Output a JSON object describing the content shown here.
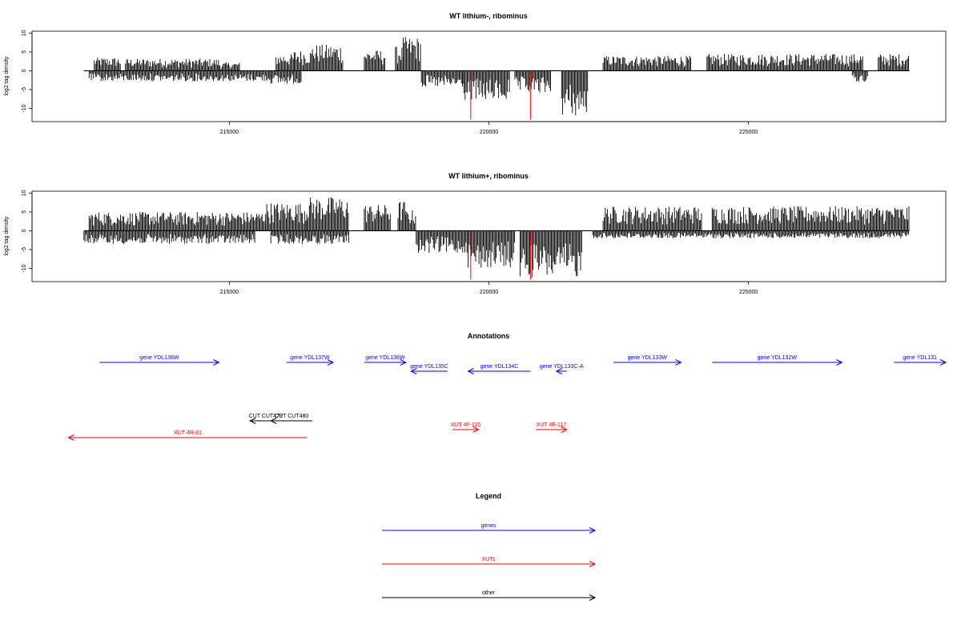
{
  "chart_data": [
    {
      "type": "bar",
      "title": "WT lithium-, ribominus",
      "ylabel": "log2 tag density",
      "xlabel": "",
      "xlim": [
        211200,
        228800
      ],
      "ylim": [
        -13.5,
        10.5
      ],
      "data_range": [
        212200,
        228100
      ],
      "yticks": [
        10,
        5,
        0,
        -5,
        -10
      ],
      "xticks": [
        215000,
        220000,
        225000
      ],
      "xtick_labels": [
        "215000",
        "220000",
        "225000"
      ],
      "highlight_color": "#ff0000",
      "plus_strand_blocks": [
        {
          "x": [
            212400,
            212900
          ],
          "max": 3.5
        },
        {
          "x": [
            213000,
            214800
          ],
          "max": 3.2
        },
        {
          "x": [
            214800,
            215200
          ],
          "max": 2.2
        },
        {
          "x": [
            215900,
            216250
          ],
          "max": 4.5
        },
        {
          "x": [
            216250,
            216600
          ],
          "max": 5.5
        },
        {
          "x": [
            216600,
            217200
          ],
          "max": 7.0
        },
        {
          "x": [
            217600,
            218000
          ],
          "max": 5.5
        },
        {
          "x": [
            218200,
            218350
          ],
          "max": 6.5
        },
        {
          "x": [
            218350,
            218700
          ],
          "max": 9.0
        },
        {
          "x": [
            222200,
            223900
          ],
          "max": 4.0
        },
        {
          "x": [
            224200,
            227200
          ],
          "max": 4.5
        },
        {
          "x": [
            227500,
            228100
          ],
          "max": 4.5
        }
      ],
      "minus_strand_blocks": [
        {
          "x": [
            212300,
            215800
          ],
          "max": 2.8
        },
        {
          "x": [
            215800,
            216400
          ],
          "max": 3.5
        },
        {
          "x": [
            218700,
            219500
          ],
          "max": 4.5
        },
        {
          "x": [
            219500,
            220400
          ],
          "max": 8.0
        },
        {
          "x": [
            220500,
            221200
          ],
          "max": 6.0
        },
        {
          "x": [
            221400,
            221900
          ],
          "max": 12.0
        },
        {
          "x": [
            227000,
            227300
          ],
          "max": 3.0
        }
      ],
      "red_lines": [
        {
          "x": 219650,
          "y": -13
        },
        {
          "x": 220800,
          "y": -13
        }
      ]
    },
    {
      "type": "bar",
      "title": "WT lithium+, ribominus",
      "ylabel": "log2 tag density",
      "xlabel": "",
      "xlim": [
        211200,
        228800
      ],
      "ylim": [
        -13.5,
        10.5
      ],
      "data_range": [
        212200,
        228100
      ],
      "yticks": [
        10,
        5,
        0,
        -5,
        -10
      ],
      "xticks": [
        215000,
        220000,
        225000
      ],
      "xtick_labels": [
        "215000",
        "220000",
        "225000"
      ],
      "highlight_color": "#ff0000",
      "plus_strand_blocks": [
        {
          "x": [
            212300,
            215700
          ],
          "max": 5.0
        },
        {
          "x": [
            215700,
            216500
          ],
          "max": 7.5
        },
        {
          "x": [
            216500,
            217300
          ],
          "max": 9.0
        },
        {
          "x": [
            217600,
            218100
          ],
          "max": 7.0
        },
        {
          "x": [
            218250,
            218400
          ],
          "max": 8.0
        },
        {
          "x": [
            218400,
            218600
          ],
          "max": 5.5
        },
        {
          "x": [
            222200,
            224100
          ],
          "max": 6.5
        },
        {
          "x": [
            224300,
            228100
          ],
          "max": 6.5
        }
      ],
      "minus_strand_blocks": [
        {
          "x": [
            212200,
            215500
          ],
          "max": 3.5
        },
        {
          "x": [
            215800,
            217300
          ],
          "max": 3.5
        },
        {
          "x": [
            218600,
            219600
          ],
          "max": 6.0
        },
        {
          "x": [
            219600,
            220500
          ],
          "max": 10.0
        },
        {
          "x": [
            220600,
            221800
          ],
          "max": 12.5
        },
        {
          "x": [
            222000,
            228100
          ],
          "max": 2.0
        }
      ],
      "red_lines": [
        {
          "x": 219650,
          "y": -13
        },
        {
          "x": 220800,
          "y": -13
        }
      ]
    }
  ],
  "annotations": {
    "title": "Annotations",
    "colors": {
      "gene": "#0000ff",
      "xut": "#ff0000",
      "other": "#000000"
    },
    "genes": [
      {
        "label": "gene YDL138W",
        "start": 212500,
        "end": 214800,
        "strand": "+"
      },
      {
        "label": "gene YDL137W",
        "start": 216100,
        "end": 217000,
        "strand": "+"
      },
      {
        "label": "gene YDL136W",
        "start": 217600,
        "end": 218400,
        "strand": "+"
      },
      {
        "label": "gene YDL135C",
        "start": 218500,
        "end": 219200,
        "strand": "-"
      },
      {
        "label": "gene YDL134C",
        "start": 219600,
        "end": 220800,
        "strand": "-"
      },
      {
        "label": "gene YDL133C-A",
        "start": 221300,
        "end": 221500,
        "strand": "-"
      },
      {
        "label": "gene YDL133W",
        "start": 222400,
        "end": 223700,
        "strand": "+"
      },
      {
        "label": "gene YDL132W",
        "start": 224300,
        "end": 226800,
        "strand": "+"
      },
      {
        "label": "gene YDL131",
        "start": 227800,
        "end": 228800,
        "strand": "+"
      }
    ],
    "others": [
      {
        "label": "CUT CUT479",
        "start": 215400,
        "end": 216000,
        "strand": "-"
      },
      {
        "label": "CUT CUT480",
        "start": 215800,
        "end": 216600,
        "strand": "-"
      }
    ],
    "xuts": [
      {
        "label": "XUT 4R-81",
        "start": 211900,
        "end": 216500,
        "strand": "-"
      },
      {
        "label": "XUT 4F-115",
        "start": 219300,
        "end": 219800,
        "strand": "+"
      },
      {
        "label": "XUT 4F-117",
        "start": 220900,
        "end": 221500,
        "strand": "+"
      }
    ]
  },
  "legend": {
    "title": "Legend",
    "items": [
      {
        "label": "genes",
        "color": "#0000ff"
      },
      {
        "label": "XUTs",
        "color": "#ff0000"
      },
      {
        "label": "other",
        "color": "#000000"
      }
    ]
  }
}
